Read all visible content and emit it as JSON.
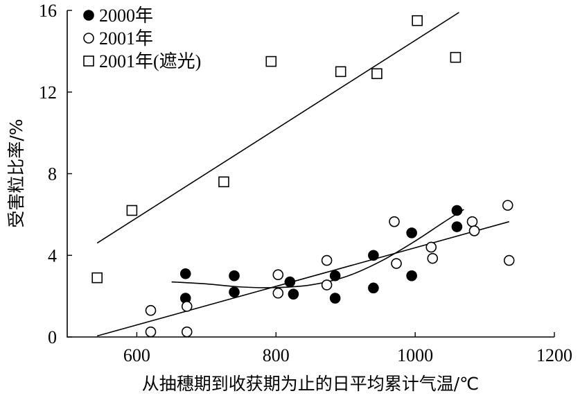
{
  "chart_data": {
    "type": "scatter",
    "title": "",
    "xlabel": "从抽穗期到收获期为止的日平均累计气温/℃",
    "ylabel": "受害粒比率/%",
    "xlim": [
      500,
      1200
    ],
    "ylim": [
      0,
      16
    ],
    "xticks": [
      600,
      800,
      1000,
      1200
    ],
    "yticks": [
      0,
      4,
      8,
      12,
      16
    ],
    "grid": false,
    "legend_position": "top-left",
    "series": [
      {
        "name": "2000年",
        "marker": "filled-circle",
        "x": [
          670,
          670,
          740,
          740,
          820,
          825,
          885,
          885,
          940,
          940,
          995,
          995,
          1060,
          1060
        ],
        "y": [
          3.1,
          1.9,
          3.0,
          2.2,
          2.7,
          2.1,
          3.0,
          1.9,
          4.0,
          2.4,
          5.1,
          3.0,
          6.2,
          5.4
        ]
      },
      {
        "name": "2001年",
        "marker": "open-circle",
        "x": [
          620,
          620,
          672,
          672,
          803,
          803,
          873,
          873,
          970,
          973,
          1023,
          1025,
          1082,
          1085,
          1133,
          1135
        ],
        "y": [
          1.3,
          0.25,
          1.5,
          0.25,
          3.05,
          2.15,
          3.75,
          2.55,
          5.65,
          3.6,
          4.4,
          3.85,
          5.65,
          5.2,
          6.45,
          3.75
        ]
      },
      {
        "name": "2001年(遮光)",
        "marker": "open-square",
        "x": [
          543,
          593,
          725,
          793,
          893,
          945,
          1003,
          1058
        ],
        "y": [
          2.9,
          6.2,
          7.6,
          13.5,
          13.0,
          12.9,
          15.5,
          13.7
        ]
      }
    ],
    "fits": [
      {
        "kind": "linear",
        "series": "2001年(遮光)",
        "from": [
          543,
          4.6
        ],
        "to": [
          1063,
          15.9
        ]
      },
      {
        "kind": "curve",
        "series": "2000年",
        "points": [
          [
            650,
            2.7
          ],
          [
            700,
            2.6
          ],
          [
            750,
            2.45
          ],
          [
            800,
            2.42
          ],
          [
            850,
            2.55
          ],
          [
            900,
            2.95
          ],
          [
            950,
            3.7
          ],
          [
            1000,
            4.7
          ],
          [
            1040,
            5.6
          ],
          [
            1070,
            6.25
          ]
        ]
      },
      {
        "kind": "linear",
        "series": "2001年",
        "from": [
          543,
          0.05
        ],
        "to": [
          1135,
          5.65
        ]
      }
    ],
    "colors": {
      "ink": "#000000",
      "background": "#ffffff"
    }
  }
}
